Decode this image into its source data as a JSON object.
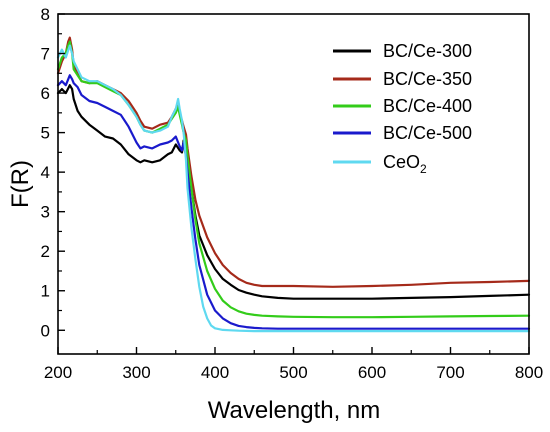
{
  "chart_data": {
    "type": "line",
    "xlabel": "Wavelength, nm",
    "ylabel": "F(R)",
    "xlim": [
      200,
      800
    ],
    "ylim": [
      -0.6,
      8
    ],
    "xticks": [
      200,
      300,
      400,
      500,
      600,
      700,
      800
    ],
    "yticks": [
      0,
      1,
      2,
      3,
      4,
      5,
      6,
      7,
      8
    ],
    "legend_position": "top-right",
    "grid": false,
    "series": [
      {
        "name": "BC/Ce-300",
        "color": "#000000",
        "x": [
          200,
          205,
          210,
          215,
          218,
          220,
          225,
          230,
          240,
          250,
          260,
          270,
          280,
          290,
          300,
          305,
          310,
          320,
          330,
          340,
          345,
          350,
          355,
          358,
          360,
          363,
          365,
          370,
          375,
          380,
          390,
          400,
          410,
          420,
          430,
          440,
          450,
          460,
          480,
          500,
          550,
          600,
          650,
          700,
          750,
          800
        ],
        "y": [
          6.0,
          6.1,
          6.0,
          6.2,
          6.1,
          5.85,
          5.55,
          5.4,
          5.2,
          5.05,
          4.9,
          4.85,
          4.7,
          4.45,
          4.3,
          4.25,
          4.3,
          4.25,
          4.3,
          4.45,
          4.5,
          4.7,
          4.55,
          4.5,
          4.8,
          4.6,
          4.3,
          3.6,
          2.9,
          2.4,
          1.9,
          1.55,
          1.3,
          1.15,
          1.02,
          0.95,
          0.9,
          0.86,
          0.82,
          0.8,
          0.8,
          0.8,
          0.82,
          0.84,
          0.87,
          0.9
        ]
      },
      {
        "name": "BC/Ce-350",
        "color": "#a52a1a",
        "x": [
          200,
          205,
          210,
          213,
          215,
          218,
          220,
          225,
          230,
          240,
          250,
          260,
          270,
          280,
          290,
          300,
          305,
          310,
          320,
          330,
          340,
          345,
          350,
          353,
          355,
          358,
          360,
          363,
          365,
          370,
          375,
          380,
          390,
          400,
          410,
          420,
          430,
          440,
          450,
          460,
          480,
          500,
          550,
          600,
          650,
          700,
          750,
          800
        ],
        "y": [
          6.5,
          6.8,
          7.0,
          7.3,
          7.4,
          7.1,
          6.7,
          6.5,
          6.3,
          6.25,
          6.3,
          6.2,
          6.1,
          6.0,
          5.8,
          5.5,
          5.3,
          5.15,
          5.1,
          5.2,
          5.25,
          5.4,
          5.6,
          5.75,
          5.5,
          5.3,
          5.15,
          4.95,
          4.6,
          3.9,
          3.3,
          2.9,
          2.35,
          1.95,
          1.65,
          1.45,
          1.3,
          1.2,
          1.15,
          1.12,
          1.12,
          1.12,
          1.1,
          1.12,
          1.15,
          1.2,
          1.22,
          1.25
        ]
      },
      {
        "name": "BC/Ce-400",
        "color": "#33cc1a",
        "x": [
          200,
          205,
          210,
          213,
          215,
          218,
          220,
          225,
          230,
          240,
          250,
          260,
          270,
          280,
          290,
          300,
          305,
          310,
          320,
          330,
          340,
          345,
          350,
          353,
          355,
          358,
          360,
          363,
          365,
          370,
          375,
          380,
          390,
          400,
          410,
          420,
          430,
          440,
          450,
          460,
          480,
          500,
          550,
          600,
          650,
          700,
          750,
          800
        ],
        "y": [
          6.6,
          6.9,
          7.0,
          7.2,
          7.3,
          7.0,
          6.6,
          6.45,
          6.3,
          6.25,
          6.25,
          6.15,
          6.05,
          5.95,
          5.7,
          5.4,
          5.2,
          5.05,
          5.0,
          5.1,
          5.2,
          5.35,
          5.5,
          5.65,
          5.45,
          5.2,
          5.0,
          4.8,
          4.4,
          3.6,
          2.8,
          2.2,
          1.5,
          1.05,
          0.75,
          0.58,
          0.48,
          0.42,
          0.39,
          0.37,
          0.35,
          0.34,
          0.33,
          0.33,
          0.34,
          0.35,
          0.36,
          0.37
        ]
      },
      {
        "name": "BC/Ce-500",
        "color": "#1a1acc",
        "x": [
          200,
          205,
          210,
          215,
          218,
          220,
          225,
          230,
          240,
          250,
          260,
          270,
          280,
          290,
          300,
          305,
          310,
          320,
          330,
          340,
          345,
          350,
          355,
          358,
          360,
          363,
          365,
          370,
          375,
          380,
          390,
          400,
          410,
          420,
          430,
          440,
          450,
          460,
          480,
          500,
          550,
          600,
          650,
          700,
          750,
          800
        ],
        "y": [
          6.2,
          6.3,
          6.2,
          6.45,
          6.35,
          6.25,
          6.15,
          5.95,
          5.8,
          5.75,
          5.65,
          5.55,
          5.45,
          5.15,
          4.75,
          4.6,
          4.65,
          4.6,
          4.7,
          4.75,
          4.8,
          4.9,
          4.65,
          4.55,
          4.75,
          4.4,
          4.0,
          3.1,
          2.3,
          1.65,
          0.9,
          0.5,
          0.3,
          0.18,
          0.11,
          0.08,
          0.06,
          0.05,
          0.04,
          0.04,
          0.04,
          0.04,
          0.04,
          0.04,
          0.04,
          0.04
        ]
      },
      {
        "name": "CeO2",
        "color": "#5fd9f0",
        "x": [
          200,
          205,
          210,
          215,
          218,
          220,
          225,
          230,
          240,
          250,
          260,
          270,
          280,
          290,
          300,
          305,
          310,
          320,
          330,
          340,
          345,
          350,
          353,
          355,
          358,
          360,
          363,
          365,
          370,
          375,
          380,
          385,
          390,
          395,
          400,
          410,
          420,
          430,
          450,
          500,
          550,
          600,
          650,
          700,
          750,
          800
        ],
        "y": [
          6.9,
          7.1,
          6.9,
          7.2,
          7.0,
          6.8,
          6.6,
          6.4,
          6.3,
          6.3,
          6.2,
          6.1,
          5.95,
          5.7,
          5.4,
          5.2,
          5.05,
          5.0,
          5.05,
          5.15,
          5.4,
          5.6,
          5.85,
          5.6,
          5.3,
          5.0,
          4.3,
          3.6,
          2.6,
          1.8,
          1.1,
          0.6,
          0.3,
          0.12,
          0.05,
          0.01,
          0.0,
          -0.01,
          -0.02,
          -0.02,
          -0.02,
          -0.02,
          -0.02,
          -0.02,
          -0.02,
          -0.02
        ]
      }
    ]
  },
  "legend": {
    "items": [
      {
        "label": "BC/Ce-300",
        "color": "#000000"
      },
      {
        "label": "BC/Ce-350",
        "color": "#a52a1a"
      },
      {
        "label": "BC/Ce-400",
        "color": "#33cc1a"
      },
      {
        "label": "BC/Ce-500",
        "color": "#1a1acc"
      },
      {
        "label_main": "CeO",
        "label_sub": "2",
        "color": "#5fd9f0"
      }
    ]
  }
}
